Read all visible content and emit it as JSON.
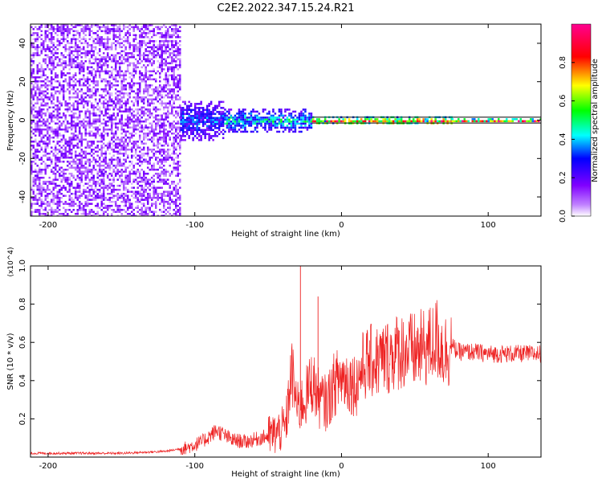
{
  "title": "C2E2.2022.347.15.24.R21",
  "chart_data": [
    {
      "type": "heatmap",
      "xlabel": "Height of straight line (km)",
      "ylabel": "Frequency (Hz)",
      "xlim": [
        -212,
        136
      ],
      "ylim": [
        -50,
        50
      ],
      "xticks": [
        -200,
        -100,
        0,
        100
      ],
      "yticks": [
        -40,
        -20,
        0,
        20,
        40
      ],
      "colorbar": {
        "label": "Normalized spectral amplitude",
        "range": [
          0,
          1
        ],
        "ticks": [
          0.0,
          0.2,
          0.4,
          0.6,
          0.8
        ],
        "colormap": [
          "#ffffff",
          "#a000ff",
          "#0000ff",
          "#00ffff",
          "#00ff00",
          "#ffff00",
          "#ff0000",
          "#ff0090"
        ]
      },
      "regions": [
        {
          "x_range": [
            -212,
            -110
          ],
          "freq_range": [
            -50,
            50
          ],
          "amplitude": 0.1,
          "pattern": "broadband noise"
        },
        {
          "x_range": [
            -110,
            -80
          ],
          "freq_range": [
            -10,
            10
          ],
          "amplitude": 0.35
        },
        {
          "x_range": [
            -80,
            -20
          ],
          "freq_range": [
            -6,
            6
          ],
          "amplitude": 0.45
        },
        {
          "x_range": [
            -20,
            75
          ],
          "freq_range": [
            -2,
            2
          ],
          "amplitude": 0.85
        },
        {
          "x_range": [
            75,
            136
          ],
          "freq_range": [
            -1,
            1
          ],
          "amplitude": 0.9
        }
      ],
      "grid": false
    },
    {
      "type": "line",
      "xlabel": "Height of straight line (km)",
      "ylabel": "SNR (10 * v/v)",
      "y_multiplier": "(x10^4)",
      "xlim": [
        -212,
        136
      ],
      "ylim": [
        0,
        1.0
      ],
      "xticks": [
        -200,
        -100,
        0,
        100
      ],
      "yticks": [
        0.2,
        0.4,
        0.6,
        0.8,
        1.0
      ],
      "series": [
        {
          "color": "#ee2222",
          "x": [
            -212,
            -180,
            -150,
            -120,
            -105,
            -95,
            -85,
            -75,
            -65,
            -55,
            -45,
            -38,
            -34,
            -30,
            -25,
            -20,
            -15,
            -10,
            -5,
            0,
            5,
            10,
            15,
            20,
            25,
            30,
            40,
            50,
            60,
            65,
            70,
            75,
            80,
            90,
            100,
            110,
            120,
            136
          ],
          "values": [
            0.02,
            0.02,
            0.02,
            0.03,
            0.05,
            0.08,
            0.14,
            0.09,
            0.08,
            0.1,
            0.12,
            0.16,
            0.45,
            0.25,
            0.3,
            0.4,
            0.3,
            0.28,
            0.38,
            0.42,
            0.4,
            0.38,
            0.48,
            0.5,
            0.5,
            0.52,
            0.56,
            0.55,
            0.58,
            0.62,
            0.55,
            0.58,
            0.55,
            0.55,
            0.54,
            0.54,
            0.54,
            0.54
          ]
        }
      ],
      "spikes": [
        {
          "x": -28,
          "value": 1.0
        },
        {
          "x": -16,
          "value": 0.84
        }
      ],
      "grid": false
    }
  ]
}
